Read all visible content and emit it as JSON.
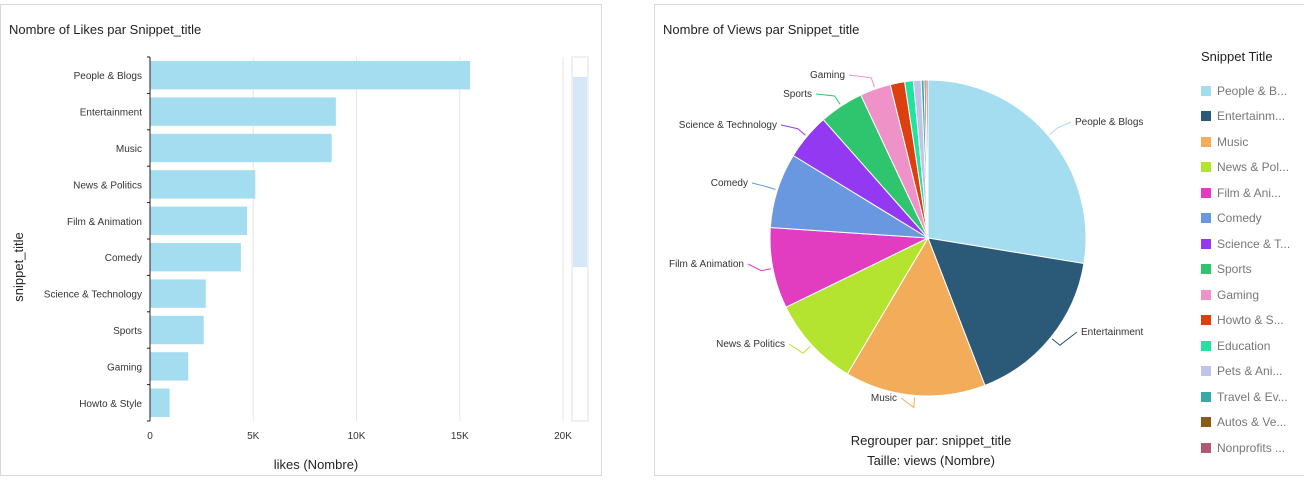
{
  "panels": {
    "likes": {
      "title": "Nombre of Likes par Snippet_title"
    },
    "views": {
      "title": "Nombre of Views par Snippet_title",
      "group_by": "Regrouper par: snippet_title",
      "size": "Taille: views (Nombre)",
      "legend_title": "Snippet Title"
    }
  },
  "chart_data": [
    {
      "type": "bar",
      "orientation": "horizontal",
      "title": "Nombre of Likes par Snippet_title",
      "xlabel": "likes (Nombre)",
      "ylabel": "snippet_title",
      "xlim": [
        0,
        20000
      ],
      "xticks": [
        0,
        5000,
        10000,
        15000,
        20000
      ],
      "xtick_labels": [
        "0",
        "5K",
        "10K",
        "15K",
        "20K"
      ],
      "grid": true,
      "bar_color": "#a4dcf0",
      "categories": [
        "People & Blogs",
        "Entertainment",
        "Music",
        "News & Politics",
        "Film & Animation",
        "Comedy",
        "Science & Technology",
        "Sports",
        "Gaming",
        "Howto & Style"
      ],
      "values": [
        15500,
        9000,
        8800,
        5100,
        4700,
        4400,
        2700,
        2600,
        1850,
        950
      ]
    },
    {
      "type": "pie",
      "title": "Nombre of Views par Snippet_title",
      "legend_position": "right",
      "legend_title": "Snippet Title",
      "categories": [
        "People & Blogs",
        "Entertainment",
        "Music",
        "News & Politics",
        "Film & Animation",
        "Comedy",
        "Science & Technology",
        "Sports",
        "Gaming",
        "Howto & Style",
        "Education",
        "Pets & Animals",
        "Travel & Events",
        "Autos & Vehicles",
        "Nonprofits & Activism"
      ],
      "legend_labels": [
        "People & B...",
        "Entertainm...",
        "Music",
        "News & Pol...",
        "Film & Ani...",
        "Comedy",
        "Science & T...",
        "Sports",
        "Gaming",
        "Howto & S...",
        "Education",
        "Pets & Ani...",
        "Travel & Ev...",
        "Autos & Ve...",
        "Nonprofits ..."
      ],
      "slice_labels": [
        "People & Blogs",
        "Entertainment",
        "Music",
        "News & Politics",
        "Film & Animation",
        "Comedy",
        "Science & Technology",
        "Sports",
        "Gaming",
        "",
        "",
        "",
        "",
        "",
        ""
      ],
      "values": [
        28.0,
        16.8,
        14.6,
        9.4,
        8.4,
        7.8,
        4.8,
        4.6,
        3.2,
        1.5,
        0.9,
        0.8,
        0.3,
        0.2,
        0.2
      ],
      "colors": [
        "#a4dcf0",
        "#2b5a78",
        "#f3ac59",
        "#b5e430",
        "#e23dc0",
        "#6a98e0",
        "#9439f2",
        "#2ec56e",
        "#ee92c8",
        "#dc3f10",
        "#1fe39f",
        "#c1c4ea",
        "#3aa8a6",
        "#8a5a1c",
        "#b05878"
      ]
    }
  ]
}
